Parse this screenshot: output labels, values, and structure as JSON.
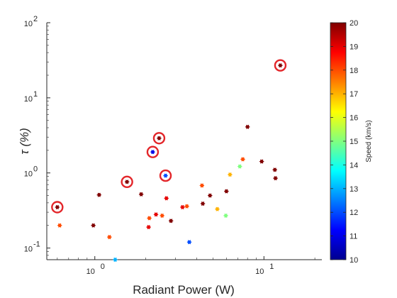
{
  "chart_data": {
    "type": "scatter",
    "xlabel": "Radiant Power (W)",
    "ylabel": "τ (%)",
    "xscale": "log",
    "yscale": "log",
    "xlim": [
      0.52,
      22
    ],
    "ylim": [
      0.07,
      100
    ],
    "x_ticks": [
      {
        "value": 1,
        "base": "10",
        "exp": "0"
      },
      {
        "value": 10,
        "base": "10",
        "exp": "1"
      }
    ],
    "y_ticks": [
      {
        "value": 0.1,
        "base": "10",
        "exp": "-1"
      },
      {
        "value": 1,
        "base": "10",
        "exp": "0"
      },
      {
        "value": 10,
        "base": "10",
        "exp": "1"
      },
      {
        "value": 100,
        "base": "10",
        "exp": "2"
      }
    ],
    "grid": false,
    "colorbar": {
      "label": "Speed (km/s)",
      "min": 10,
      "max": 20,
      "ticks": [
        "10",
        "11",
        "12",
        "13",
        "14",
        "15",
        "16",
        "17",
        "18",
        "19",
        "20"
      ],
      "colormap": "jet"
    },
    "circle_color": "#e3262a",
    "points": [
      {
        "x": 0.6,
        "y": 0.35,
        "speed": 20,
        "circled": true
      },
      {
        "x": 0.62,
        "y": 0.2,
        "speed": 18
      },
      {
        "x": 0.98,
        "y": 0.2,
        "speed": 20
      },
      {
        "x": 1.06,
        "y": 0.51,
        "speed": 20
      },
      {
        "x": 1.22,
        "y": 0.14,
        "speed": 18
      },
      {
        "x": 1.32,
        "y": 0.07,
        "speed": 13
      },
      {
        "x": 1.55,
        "y": 0.76,
        "speed": 20,
        "circled": true
      },
      {
        "x": 1.88,
        "y": 0.52,
        "speed": 20
      },
      {
        "x": 2.08,
        "y": 0.19,
        "speed": 19
      },
      {
        "x": 2.1,
        "y": 0.25,
        "speed": 18
      },
      {
        "x": 2.2,
        "y": 1.9,
        "speed": 11,
        "circled": true
      },
      {
        "x": 2.3,
        "y": 0.28,
        "speed": 19
      },
      {
        "x": 2.4,
        "y": 2.9,
        "speed": 20,
        "circled": true
      },
      {
        "x": 2.5,
        "y": 0.27,
        "speed": 18
      },
      {
        "x": 2.62,
        "y": 0.92,
        "speed": 12,
        "circled": true
      },
      {
        "x": 2.65,
        "y": 0.46,
        "speed": 19
      },
      {
        "x": 2.82,
        "y": 0.23,
        "speed": 20
      },
      {
        "x": 3.3,
        "y": 0.35,
        "speed": 19
      },
      {
        "x": 3.5,
        "y": 0.36,
        "speed": 18
      },
      {
        "x": 3.62,
        "y": 0.12,
        "speed": 12
      },
      {
        "x": 4.3,
        "y": 0.68,
        "speed": 18
      },
      {
        "x": 4.35,
        "y": 0.39,
        "speed": 20
      },
      {
        "x": 4.8,
        "y": 0.5,
        "speed": 20
      },
      {
        "x": 5.3,
        "y": 0.33,
        "speed": 17
      },
      {
        "x": 5.95,
        "y": 0.27,
        "speed": 15
      },
      {
        "x": 6.0,
        "y": 0.57,
        "speed": 20
      },
      {
        "x": 6.3,
        "y": 0.95,
        "speed": 17
      },
      {
        "x": 7.2,
        "y": 1.22,
        "speed": 15
      },
      {
        "x": 7.5,
        "y": 1.52,
        "speed": 18
      },
      {
        "x": 8.0,
        "y": 4.1,
        "speed": 20
      },
      {
        "x": 9.7,
        "y": 1.42,
        "speed": 20
      },
      {
        "x": 11.6,
        "y": 1.1,
        "speed": 20
      },
      {
        "x": 11.7,
        "y": 0.85,
        "speed": 20
      },
      {
        "x": 12.5,
        "y": 27.0,
        "speed": 20,
        "circled": true
      }
    ]
  }
}
